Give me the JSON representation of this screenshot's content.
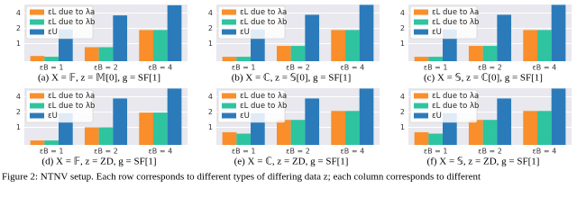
{
  "chart_data": [
    {
      "type": "bar",
      "caption": "(a) X = 𝔽, z = 𝕄[0], g = SF[1]",
      "categories": [
        "εB = 1",
        "εB = 2",
        "εB = 4"
      ],
      "series": [
        {
          "name": "εL due to λa",
          "color": "#f98e2b",
          "values": [
            0.57,
            0.85,
            1.85
          ]
        },
        {
          "name": "εL due to λb",
          "color": "#2ec4a0",
          "values": [
            0.55,
            0.85,
            1.85
          ]
        },
        {
          "name": "εU",
          "color": "#2b7bba",
          "values": [
            1.9,
            3.6,
            5.7
          ]
        }
      ],
      "ylim": [
        0.45,
        5.9
      ],
      "yticks": [
        1,
        2,
        4
      ],
      "yscale": "log",
      "grid": true,
      "legend": "upper left"
    },
    {
      "type": "bar",
      "caption": "(b) X = ℂ, z = 𝕊[0], g = SF[1]",
      "categories": [
        "εB = 1",
        "εB = 2",
        "εB = 4"
      ],
      "series": [
        {
          "name": "εL due to λa",
          "color": "#f98e2b",
          "values": [
            0.55,
            0.9,
            1.85
          ]
        },
        {
          "name": "εL due to λb",
          "color": "#2ec4a0",
          "values": [
            0.55,
            0.9,
            1.85
          ]
        },
        {
          "name": "εU",
          "color": "#2b7bba",
          "values": [
            1.9,
            3.7,
            5.8
          ]
        }
      ],
      "ylim": [
        0.45,
        5.9
      ],
      "yticks": [
        1,
        2,
        4
      ],
      "yscale": "log",
      "grid": true,
      "legend": "upper left"
    },
    {
      "type": "bar",
      "caption": "(c) X = 𝕊, z = ℂ[0], g = SF[1]",
      "categories": [
        "εB = 1",
        "εB = 2",
        "εB = 4"
      ],
      "series": [
        {
          "name": "εL due to λa",
          "color": "#f98e2b",
          "values": [
            0.55,
            0.9,
            1.85
          ]
        },
        {
          "name": "εL due to λb",
          "color": "#2ec4a0",
          "values": [
            0.55,
            0.9,
            1.85
          ]
        },
        {
          "name": "εU",
          "color": "#2b7bba",
          "values": [
            1.9,
            3.7,
            5.8
          ]
        }
      ],
      "ylim": [
        0.45,
        5.9
      ],
      "yticks": [
        1,
        2,
        4
      ],
      "yscale": "log",
      "grid": true,
      "legend": "upper left"
    },
    {
      "type": "bar",
      "caption": "(d) X = 𝔽, z = ZD, g = SF[1]",
      "categories": [
        "εB = 1",
        "εB = 2",
        "εB = 4"
      ],
      "series": [
        {
          "name": "εL due to λa",
          "color": "#f98e2b",
          "values": [
            0.55,
            1.0,
            1.95
          ]
        },
        {
          "name": "εL due to λb",
          "color": "#2ec4a0",
          "values": [
            0.55,
            1.0,
            1.95
          ]
        },
        {
          "name": "εU",
          "color": "#2b7bba",
          "values": [
            1.9,
            3.7,
            5.8
          ]
        }
      ],
      "ylim": [
        0.45,
        5.9
      ],
      "yticks": [
        1,
        2,
        4
      ],
      "yscale": "log",
      "grid": true,
      "legend": "upper left"
    },
    {
      "type": "bar",
      "caption": "(e) X = ℂ, z = ZD, g = SF[1]",
      "categories": [
        "εB = 1",
        "εB = 2",
        "εB = 4"
      ],
      "series": [
        {
          "name": "εL due to λa",
          "color": "#f98e2b",
          "values": [
            0.8,
            1.4,
            2.1
          ]
        },
        {
          "name": "εL due to λb",
          "color": "#2ec4a0",
          "values": [
            0.75,
            1.4,
            2.1
          ]
        },
        {
          "name": "εU",
          "color": "#2b7bba",
          "values": [
            1.9,
            3.7,
            5.8
          ]
        }
      ],
      "ylim": [
        0.45,
        5.9
      ],
      "yticks": [
        1,
        2,
        4
      ],
      "yscale": "log",
      "grid": true,
      "legend": "upper left"
    },
    {
      "type": "bar",
      "caption": "(f) X = 𝕊, z = ZD, g = SF[1]",
      "categories": [
        "εB = 1",
        "εB = 2",
        "εB = 4"
      ],
      "series": [
        {
          "name": "εL due to λa",
          "color": "#f98e2b",
          "values": [
            0.8,
            1.4,
            2.1
          ]
        },
        {
          "name": "εL due to λb",
          "color": "#2ec4a0",
          "values": [
            0.75,
            1.4,
            2.1
          ]
        },
        {
          "name": "εU",
          "color": "#2b7bba",
          "values": [
            1.9,
            3.7,
            5.8
          ]
        }
      ],
      "ylim": [
        0.45,
        5.9
      ],
      "yticks": [
        1,
        2,
        4
      ],
      "yscale": "log",
      "grid": true,
      "legend": "upper left"
    }
  ],
  "figure_caption": "Figure 2: NTNV setup. Each row corresponds to different types of differing data z; each column corresponds to different"
}
